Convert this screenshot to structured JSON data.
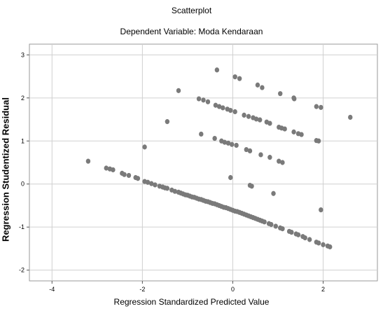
{
  "chart_data": {
    "type": "scatter",
    "title": "Scatterplot",
    "subtitle": "Dependent Variable: Moda Kendaraan",
    "xlabel": "Regression Standardized Predicted Value",
    "ylabel": "Regression Studentized Residual",
    "xlim": [
      -4.5,
      3.2
    ],
    "ylim": [
      -2.25,
      3.25
    ],
    "xticks": [
      -4,
      -2,
      0,
      2
    ],
    "yticks": [
      -2,
      -1,
      0,
      1,
      2,
      3
    ],
    "grid": true,
    "point_color": "#7a7a7a",
    "points": [
      [
        -3.2,
        0.53
      ],
      [
        -2.8,
        0.37
      ],
      [
        -2.72,
        0.35
      ],
      [
        -2.65,
        0.33
      ],
      [
        -2.45,
        0.25
      ],
      [
        -2.4,
        0.22
      ],
      [
        -2.3,
        0.2
      ],
      [
        -2.15,
        0.15
      ],
      [
        -2.1,
        0.13
      ],
      [
        -1.95,
        0.06
      ],
      [
        -1.88,
        0.04
      ],
      [
        -1.8,
        0.01
      ],
      [
        -1.72,
        -0.02
      ],
      [
        -1.62,
        -0.05
      ],
      [
        -1.55,
        -0.07
      ],
      [
        -1.5,
        -0.09
      ],
      [
        -1.45,
        -0.1
      ],
      [
        -1.35,
        -0.14
      ],
      [
        -1.28,
        -0.17
      ],
      [
        -1.2,
        -0.19
      ],
      [
        -1.15,
        -0.21
      ],
      [
        -1.1,
        -0.23
      ],
      [
        -1.05,
        -0.25
      ],
      [
        -1.0,
        -0.26
      ],
      [
        -0.95,
        -0.28
      ],
      [
        -0.9,
        -0.3
      ],
      [
        -0.85,
        -0.31
      ],
      [
        -0.8,
        -0.33
      ],
      [
        -0.75,
        -0.35
      ],
      [
        -0.7,
        -0.36
      ],
      [
        -0.65,
        -0.38
      ],
      [
        -0.6,
        -0.4
      ],
      [
        -0.55,
        -0.41
      ],
      [
        -0.5,
        -0.43
      ],
      [
        -0.45,
        -0.45
      ],
      [
        -0.4,
        -0.46
      ],
      [
        -0.35,
        -0.48
      ],
      [
        -0.3,
        -0.5
      ],
      [
        -0.25,
        -0.52
      ],
      [
        -0.2,
        -0.54
      ],
      [
        -0.15,
        -0.55
      ],
      [
        -0.1,
        -0.57
      ],
      [
        -0.05,
        -0.59
      ],
      [
        0.0,
        -0.61
      ],
      [
        0.05,
        -0.63
      ],
      [
        0.1,
        -0.64
      ],
      [
        0.15,
        -0.66
      ],
      [
        0.2,
        -0.68
      ],
      [
        0.25,
        -0.7
      ],
      [
        0.3,
        -0.72
      ],
      [
        0.35,
        -0.74
      ],
      [
        0.4,
        -0.76
      ],
      [
        0.45,
        -0.78
      ],
      [
        0.5,
        -0.8
      ],
      [
        0.55,
        -0.82
      ],
      [
        0.6,
        -0.84
      ],
      [
        0.65,
        -0.86
      ],
      [
        0.7,
        -0.88
      ],
      [
        0.8,
        -0.92
      ],
      [
        0.85,
        -0.94
      ],
      [
        0.95,
        -0.98
      ],
      [
        1.05,
        -1.02
      ],
      [
        1.1,
        -1.04
      ],
      [
        1.25,
        -1.1
      ],
      [
        1.3,
        -1.12
      ],
      [
        1.4,
        -1.16
      ],
      [
        1.45,
        -1.18
      ],
      [
        1.55,
        -1.22
      ],
      [
        1.6,
        -1.25
      ],
      [
        1.7,
        -1.29
      ],
      [
        1.85,
        -1.35
      ],
      [
        1.9,
        -1.37
      ],
      [
        2.0,
        -1.41
      ],
      [
        2.1,
        -1.44
      ],
      [
        2.15,
        -1.46
      ],
      [
        -0.35,
        2.65
      ],
      [
        0.05,
        2.49
      ],
      [
        0.15,
        2.45
      ],
      [
        0.55,
        2.3
      ],
      [
        0.65,
        2.24
      ],
      [
        1.05,
        2.1
      ],
      [
        1.35,
        2.0
      ],
      [
        1.36,
        1.98
      ],
      [
        1.85,
        1.8
      ],
      [
        1.95,
        1.78
      ],
      [
        2.6,
        1.55
      ],
      [
        -1.2,
        2.17
      ],
      [
        -0.75,
        1.98
      ],
      [
        -0.65,
        1.95
      ],
      [
        -0.55,
        1.91
      ],
      [
        -0.38,
        1.83
      ],
      [
        -0.3,
        1.8
      ],
      [
        -0.22,
        1.77
      ],
      [
        -0.12,
        1.74
      ],
      [
        -0.05,
        1.71
      ],
      [
        0.05,
        1.68
      ],
      [
        0.25,
        1.6
      ],
      [
        0.35,
        1.57
      ],
      [
        0.45,
        1.54
      ],
      [
        0.52,
        1.51
      ],
      [
        0.6,
        1.49
      ],
      [
        0.75,
        1.44
      ],
      [
        0.82,
        1.41
      ],
      [
        1.02,
        1.32
      ],
      [
        1.08,
        1.3
      ],
      [
        1.15,
        1.28
      ],
      [
        1.35,
        1.21
      ],
      [
        1.45,
        1.17
      ],
      [
        1.52,
        1.15
      ],
      [
        1.85,
        1.01
      ],
      [
        1.9,
        1.0
      ],
      [
        -1.45,
        1.45
      ],
      [
        -0.7,
        1.16
      ],
      [
        -0.4,
        1.06
      ],
      [
        -0.25,
        1.0
      ],
      [
        -0.18,
        0.97
      ],
      [
        -0.1,
        0.95
      ],
      [
        -0.02,
        0.92
      ],
      [
        0.08,
        0.9
      ],
      [
        0.3,
        0.8
      ],
      [
        0.38,
        0.77
      ],
      [
        0.62,
        0.68
      ],
      [
        0.82,
        0.62
      ],
      [
        1.02,
        0.53
      ],
      [
        1.1,
        0.5
      ],
      [
        -1.95,
        0.86
      ],
      [
        -0.05,
        0.15
      ],
      [
        0.38,
        -0.03
      ],
      [
        0.42,
        -0.05
      ],
      [
        0.9,
        -0.22
      ],
      [
        1.95,
        -0.6
      ]
    ]
  }
}
